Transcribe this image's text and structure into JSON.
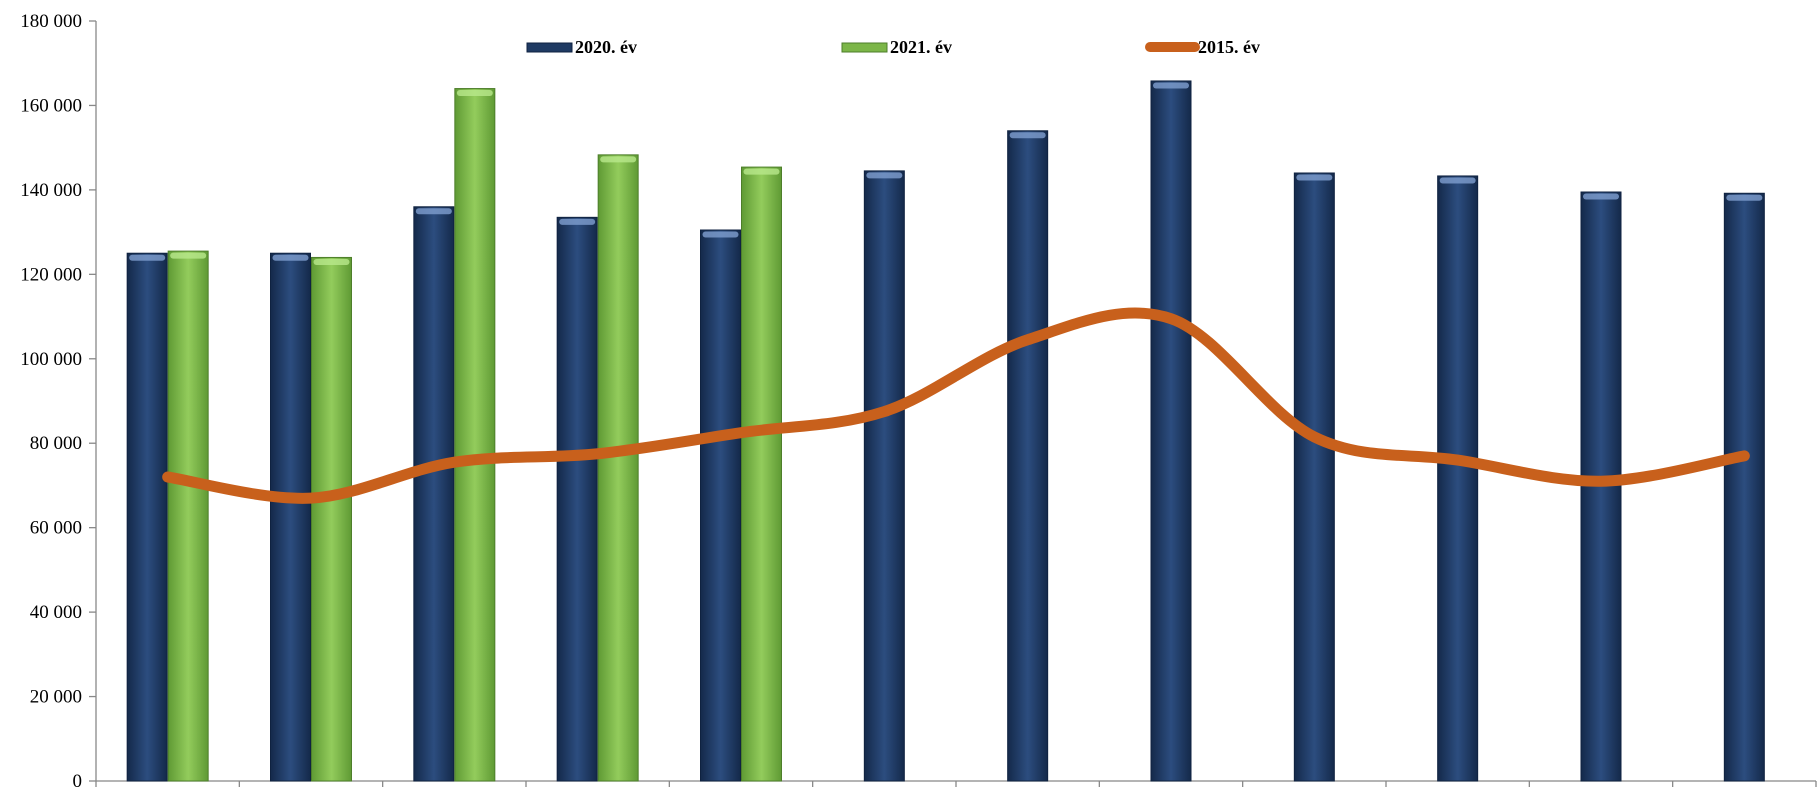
{
  "chart_data": {
    "type": "bar",
    "title": "",
    "xlabel": "",
    "ylabel": "",
    "ylim": [
      0,
      180000
    ],
    "ytick_labels": [
      "0",
      "20 000",
      "40 000",
      "60 000",
      "80 000",
      "100 000",
      "120 000",
      "140 000",
      "160 000",
      "180 000"
    ],
    "category_count": 12,
    "grid": false,
    "legend_position": "top",
    "series": [
      {
        "name": "2020. év",
        "kind": "bar",
        "color": "#1f3a63",
        "values": [
          125000,
          125000,
          136000,
          133500,
          130500,
          144500,
          154000,
          165800,
          144000,
          143300,
          139500,
          139200
        ]
      },
      {
        "name": "2021. év",
        "kind": "bar",
        "color": "#7cb648",
        "values": [
          125500,
          124000,
          164000,
          148300,
          145400,
          null,
          null,
          null,
          null,
          null,
          null,
          null
        ]
      },
      {
        "name": "2015. év",
        "kind": "line",
        "color": "#c8601c",
        "values": [
          72000,
          67000,
          75500,
          77500,
          82500,
          87500,
          104500,
          109500,
          81500,
          76000,
          71000,
          77000
        ]
      }
    ]
  }
}
